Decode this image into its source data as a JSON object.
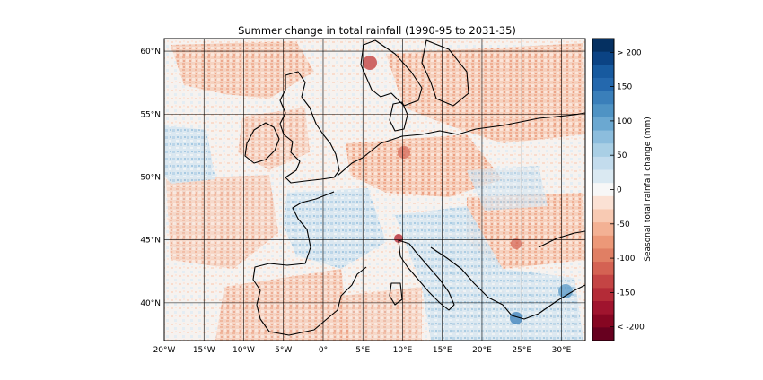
{
  "title": "Summer change in total rainfall (1990-95 to 2031-35)",
  "map": {
    "region": "Europe",
    "projection": "plate carree",
    "lon_range": [
      -20,
      33
    ],
    "lat_range": [
      37,
      61
    ],
    "lon_ticks": [
      {
        "value": -20,
        "label": "20°W"
      },
      {
        "value": -15,
        "label": "15°W"
      },
      {
        "value": -10,
        "label": "10°W"
      },
      {
        "value": -5,
        "label": "5°W"
      },
      {
        "value": 0,
        "label": "0°"
      },
      {
        "value": 5,
        "label": "5°E"
      },
      {
        "value": 10,
        "label": "10°E"
      },
      {
        "value": 15,
        "label": "15°E"
      },
      {
        "value": 20,
        "label": "20°E"
      },
      {
        "value": 25,
        "label": "25°E"
      },
      {
        "value": 30,
        "label": "30°E"
      }
    ],
    "lat_ticks": [
      {
        "value": 60,
        "label": "60°N"
      },
      {
        "value": 55,
        "label": "55°N"
      },
      {
        "value": 50,
        "label": "50°N"
      },
      {
        "value": 45,
        "label": "45°N"
      },
      {
        "value": 40,
        "label": "40°N"
      }
    ],
    "gridlines": true,
    "coastlines": true,
    "field_colors": {
      "dry_strong": "#dc7a61",
      "dry_moderate": "#efaa8c",
      "dry_light": "#f9d9c9",
      "neutral": "#f5f5f5",
      "wet_light": "#d4e6f1",
      "wet_moderate": "#a3c9e2",
      "wet_strong": "#6ba3cf"
    }
  },
  "colorbar": {
    "label": "Seasonal total rainfall change (mm)",
    "range": [
      -220,
      220
    ],
    "tick_values": [
      200,
      150,
      100,
      50,
      0,
      -50,
      -100,
      -150,
      -200
    ],
    "tick_labels": [
      "> 200",
      "150",
      "100",
      "50",
      "0",
      "-50",
      "-100",
      "-150",
      "< -200"
    ],
    "colors_top_to_bottom": [
      "#053061",
      "#0b4384",
      "#175a9f",
      "#2468ad",
      "#3a7fba",
      "#4f93c4",
      "#6ba8d1",
      "#8cbddd",
      "#a9cfe5",
      "#c3dced",
      "#dae9f2",
      "#f7f7f7",
      "#fbe1d4",
      "#f8cab3",
      "#f3b194",
      "#ec9878",
      "#e07f64",
      "#d46253",
      "#c44444",
      "#b42b37",
      "#a0142e",
      "#860622",
      "#67001f"
    ]
  }
}
